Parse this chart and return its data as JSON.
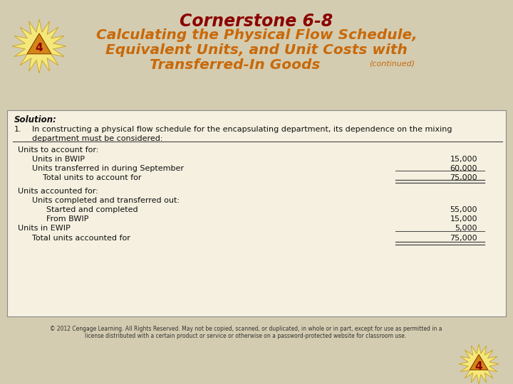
{
  "bg_color": "#d4ccb0",
  "title_line1": "Cornerstone 6-8",
  "title_line2": "Calculating the Physical Flow Schedule,",
  "title_line3": "Equivalent Units, and Unit Costs with",
  "title_line4_main": "Transferred-In Goods",
  "title_line4_small": "(continued)",
  "title_color_cs": "#8b0000",
  "title_color_rest": "#c8690a",
  "box_bg": "#f5f0e0",
  "box_border": "#888888",
  "solution_label": "Solution:",
  "para1_num": "1.",
  "para1_text": "In constructing a physical flow schedule for the encapsulating department, its dependence on the mixing",
  "para1b": "department must be considered:",
  "section1_header": "Units to account for:",
  "row1_label": "Units in BWIP",
  "row1_value": "15,000",
  "row2_label": "Units transferred in during September",
  "row2_value": "60,000",
  "row3_label": "Total units to account for",
  "row3_value": "75,000",
  "section2_header": "Units accounted for:",
  "sub2_header": "Units completed and transferred out:",
  "row4_label": "Started and completed",
  "row4_value": "55,000",
  "row5_label": "From BWIP",
  "row5_value": "15,000",
  "row6_label": "Units in EWIP",
  "row6_value": "5,000",
  "row7_label": "Total units accounted for",
  "row7_value": "75,000",
  "footer_line1": "© 2012 Cengage Learning. All Rights Reserved. May not be copied, scanned, or duplicated, in whole or in part, except for use as permitted in a",
  "footer_line2": "license distributed with a certain product or service or otherwise on a password-protected website for classroom use.",
  "footer_color": "#333333",
  "separator_color": "#444444",
  "text_color": "#111111"
}
